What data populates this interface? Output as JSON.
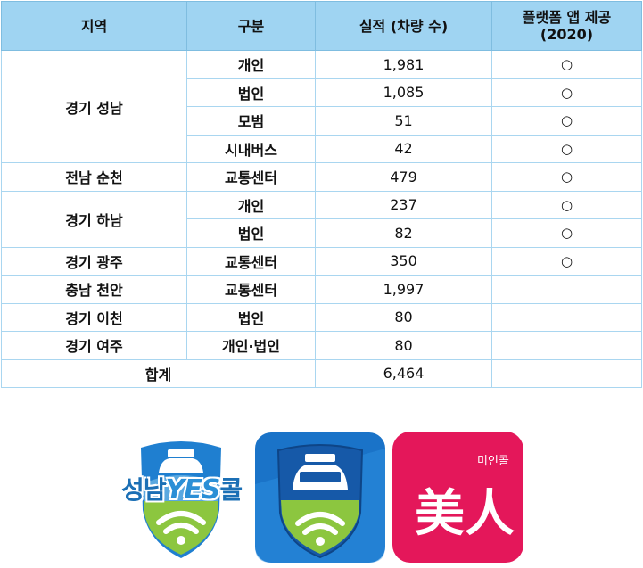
{
  "table": {
    "headers": [
      "지역",
      "구분",
      "실적 (차량 수)",
      "플랫폼 앱 제공\n(2020)"
    ],
    "header_platform_line1": "플랫폼 앱 제공",
    "header_platform_line2": "(2020)",
    "rows": [
      {
        "region": "경기 성남",
        "category": "개인",
        "value": "1,981",
        "app": "○"
      },
      {
        "region": "",
        "category": "법인",
        "value": "1,085",
        "app": "○"
      },
      {
        "region": "",
        "category": "모범",
        "value": "51",
        "app": "○"
      },
      {
        "region": "",
        "category": "시내버스",
        "value": "42",
        "app": "○"
      },
      {
        "region": "전남 순천",
        "category": "교통센터",
        "value": "479",
        "app": "○"
      },
      {
        "region": "경기 하남",
        "category": "개인",
        "value": "237",
        "app": "○"
      },
      {
        "region": "",
        "category": "법인",
        "value": "82",
        "app": "○"
      },
      {
        "region": "경기 광주",
        "category": "교통센터",
        "value": "350",
        "app": "○"
      },
      {
        "region": "충남 천안",
        "category": "교통센터",
        "value": "1,997",
        "app": ""
      },
      {
        "region": "경기 이천",
        "category": "법인",
        "value": "80",
        "app": ""
      },
      {
        "region": "경기 여주",
        "category": "개인·법인",
        "value": "80",
        "app": ""
      }
    ],
    "total_label": "합계",
    "total_value": "6,464"
  },
  "logos": {
    "seongnam_a": "성남",
    "seongnam_yes": "YES",
    "seongnam_b": "콜",
    "miin_small": "미인콜",
    "miin_char": "美人"
  },
  "colors": {
    "header_bg": "#9fd4f2",
    "border": "#a9d6f0",
    "app_blue": "#1f7fd0",
    "app_green": "#8cc63f",
    "app_pink": "#e4175a"
  }
}
